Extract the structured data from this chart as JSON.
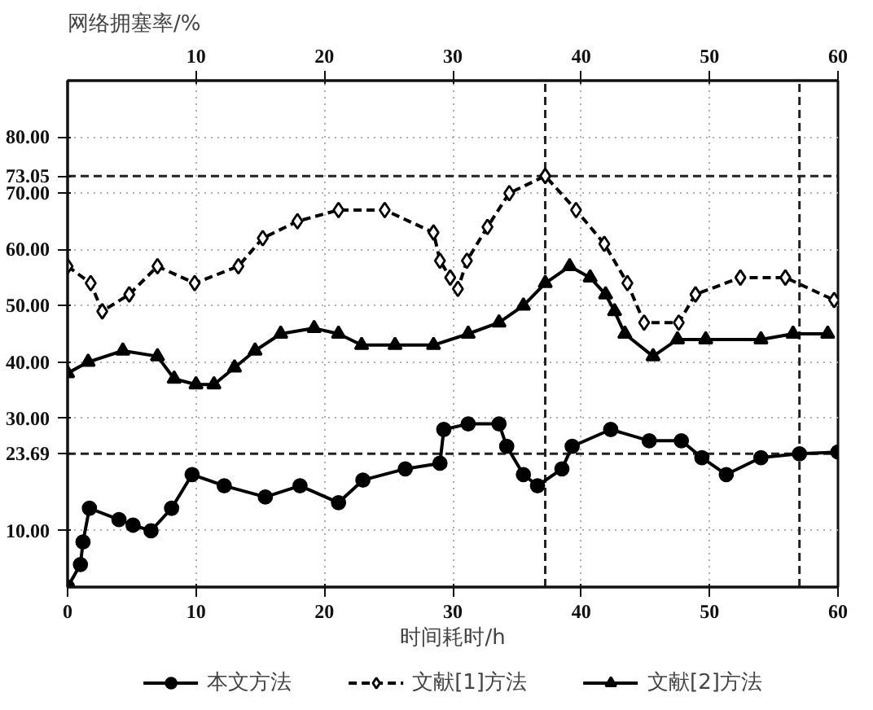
{
  "chart_data": {
    "type": "line",
    "ylabel": "网络拥塞率/%",
    "xlabel": "时间耗时/h",
    "xlim": [
      0,
      60
    ],
    "xticks": [
      0,
      10,
      20,
      30,
      40,
      50,
      60
    ],
    "x2lim": [
      0,
      60
    ],
    "x2ticks": [
      10,
      20,
      30,
      40,
      50,
      60
    ],
    "ylim": [
      0,
      90
    ],
    "yticks": [
      {
        "value": 10,
        "label": "10.00"
      },
      {
        "value": 30,
        "label": "30.00"
      },
      {
        "value": 40,
        "label": "40.00"
      },
      {
        "value": 50,
        "label": "50.00"
      },
      {
        "value": 60,
        "label": "60.00"
      },
      {
        "value": 70,
        "label": "70.00"
      },
      {
        "value": 80,
        "label": "80.00"
      }
    ],
    "grid": true,
    "legend": "bottom",
    "ref_lines": [
      {
        "axis": "y",
        "value": 73.05,
        "label": "73.05",
        "line_style": "dashed"
      },
      {
        "axis": "y",
        "value": 23.69,
        "label": "23.69",
        "line_style": "dashed"
      },
      {
        "axis": "x",
        "value": 37.2,
        "line_style": "dashed"
      },
      {
        "axis": "x",
        "value": 57.0,
        "line_style": "dashed"
      }
    ],
    "series": [
      {
        "name": "本文方法",
        "color": "#000000",
        "marker": "circle",
        "line_style": "solid",
        "x": [
          0,
          1.0,
          1.2,
          1.7,
          4.0,
          5.1,
          6.5,
          8.1,
          9.7,
          12.2,
          15.4,
          18.1,
          21.1,
          23.0,
          26.3,
          29.0,
          29.3,
          31.2,
          33.6,
          34.2,
          35.5,
          36.6,
          38.5,
          39.3,
          42.3,
          45.3,
          47.8,
          49.4,
          51.3,
          54.0,
          57.0,
          60
        ],
        "values": [
          0,
          4,
          8,
          14,
          12,
          11,
          10,
          14,
          20,
          18,
          16,
          18,
          15,
          19,
          21,
          22,
          28,
          29,
          29,
          25,
          20,
          18,
          21,
          25,
          28,
          26,
          26,
          23,
          20,
          23,
          23.69,
          24
        ]
      },
      {
        "name": "文献[1]方法",
        "color": "#000000",
        "marker": "diamond",
        "line_style": "dashed",
        "x": [
          0,
          1.8,
          2.7,
          4.8,
          7.0,
          9.9,
          13.3,
          15.2,
          17.9,
          21.1,
          24.7,
          28.5,
          29.0,
          29.8,
          30.4,
          31.1,
          32.7,
          34.4,
          37.2,
          39.6,
          41.8,
          43.6,
          44.9,
          47.6,
          48.9,
          52.4,
          55.9,
          59.7
        ],
        "values": [
          57,
          54,
          49,
          52,
          57,
          54,
          57,
          62,
          65,
          67,
          67,
          63,
          58,
          55,
          53,
          58,
          64,
          70,
          73.05,
          67,
          61,
          54,
          47,
          47,
          52,
          55,
          55,
          51
        ]
      },
      {
        "name": "文献[2]方法",
        "color": "#000000",
        "marker": "triangle",
        "line_style": "solid",
        "x": [
          0,
          1.6,
          4.3,
          7.0,
          8.3,
          10.0,
          11.4,
          13.0,
          14.6,
          16.6,
          19.2,
          21.1,
          22.9,
          25.5,
          28.5,
          31.2,
          33.6,
          35.5,
          37.2,
          39.1,
          40.7,
          41.9,
          42.6,
          43.4,
          45.6,
          47.5,
          49.7,
          54.0,
          56.5,
          59.2
        ],
        "values": [
          38,
          40,
          42,
          41,
          37,
          36,
          36,
          39,
          42,
          45,
          46,
          45,
          43,
          43,
          43,
          45,
          47,
          50,
          54,
          57,
          55,
          52,
          49,
          45,
          41,
          44,
          44,
          44,
          45,
          45
        ]
      }
    ]
  }
}
